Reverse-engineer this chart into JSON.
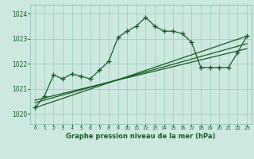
{
  "bg_color": "#cce8df",
  "grid_color": "#99cbbf",
  "line_color": "#1a5c2a",
  "title": "Graphe pression niveau de la mer (hPa)",
  "x_ticks": [
    0,
    1,
    2,
    3,
    4,
    5,
    6,
    7,
    8,
    9,
    10,
    11,
    12,
    13,
    14,
    15,
    16,
    17,
    18,
    19,
    20,
    21,
    22,
    23
  ],
  "y_ticks": [
    1020,
    1021,
    1022,
    1023,
    1024
  ],
  "ylim": [
    1019.6,
    1024.35
  ],
  "xlim": [
    -0.5,
    23.5
  ],
  "main_line": [
    1020.25,
    1020.7,
    1021.55,
    1021.4,
    1021.6,
    1021.5,
    1021.4,
    1021.75,
    1022.1,
    1023.05,
    1023.3,
    1023.5,
    1023.85,
    1023.5,
    1023.3,
    1023.3,
    1023.2,
    1022.85,
    1021.85,
    1021.85,
    1021.85,
    1021.85,
    1022.45,
    1023.1
  ],
  "trend_line1_x": [
    0,
    23
  ],
  "trend_line1_y": [
    1020.25,
    1023.1
  ],
  "trend_line2_x": [
    0,
    23
  ],
  "trend_line2_y": [
    1020.45,
    1022.8
  ],
  "trend_line3_x": [
    0,
    23
  ],
  "trend_line3_y": [
    1020.55,
    1022.6
  ]
}
